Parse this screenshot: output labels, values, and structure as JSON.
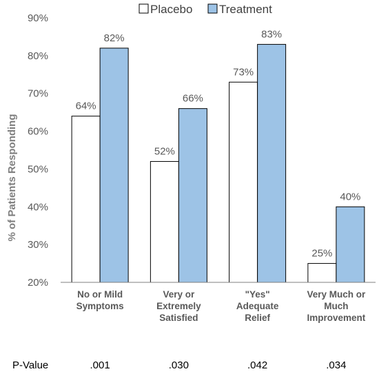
{
  "chart_data": {
    "type": "bar",
    "ylabel": "% of  Patients Responding",
    "ylim": [
      20,
      90
    ],
    "yticks": [
      "20%",
      "30%",
      "40%",
      "50%",
      "60%",
      "70%",
      "80%",
      "90%"
    ],
    "ytick_values": [
      20,
      30,
      40,
      50,
      60,
      70,
      80,
      90
    ],
    "categories": [
      [
        "No or Mild",
        "Symptoms"
      ],
      [
        "Very or",
        "Extremely",
        "Satisfied"
      ],
      [
        "\"Yes\"",
        "Adequate",
        "Relief"
      ],
      [
        "Very Much or",
        "Much",
        "Improvement"
      ]
    ],
    "series": [
      {
        "name": "Placebo",
        "values": [
          64,
          52,
          73,
          25
        ],
        "labels": [
          "64%",
          "52%",
          "73%",
          "25%"
        ],
        "color": "#ffffff"
      },
      {
        "name": "Treatment",
        "values": [
          82,
          66,
          83,
          40
        ],
        "labels": [
          "82%",
          "66%",
          "83%",
          "40%"
        ],
        "color": "#9dc3e6"
      }
    ],
    "legend_position": "top",
    "grid": false,
    "pvalue_label": "P-Value",
    "pvalues": [
      ".001",
      ".030",
      ".042",
      ".034"
    ]
  }
}
